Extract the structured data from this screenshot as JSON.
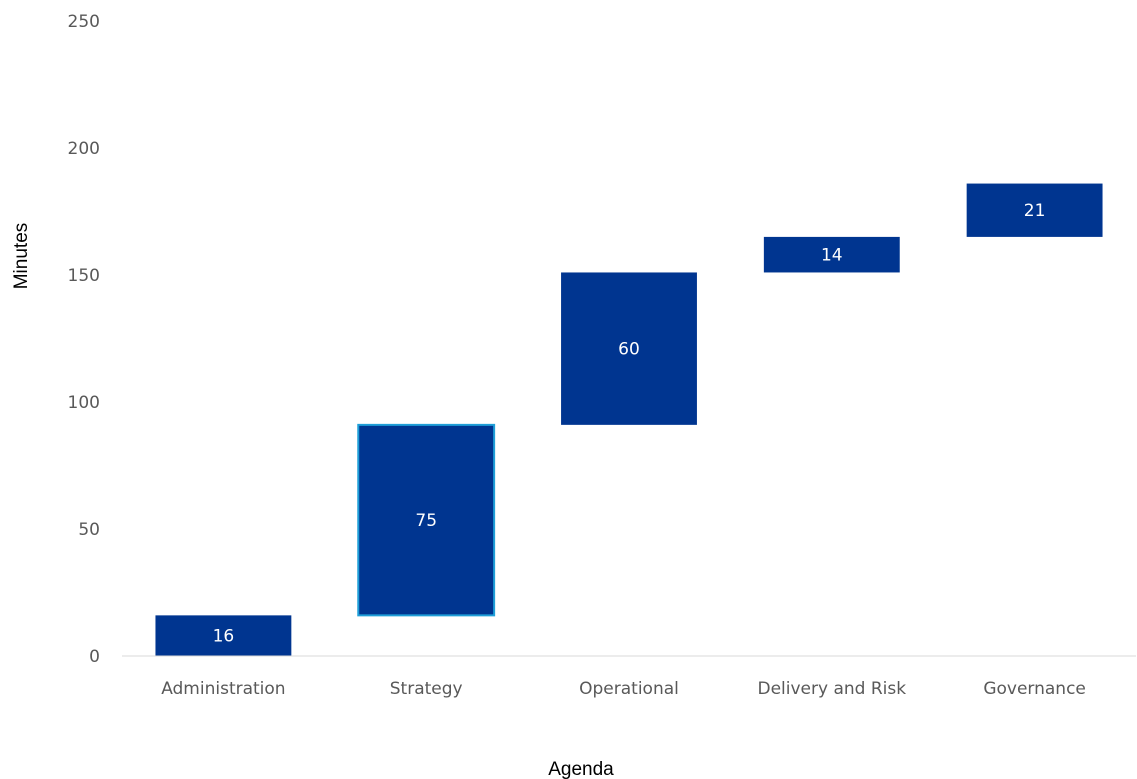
{
  "chart_data": {
    "type": "bar",
    "subtype": "waterfall",
    "categories": [
      "Administration",
      "Strategy",
      "Operational",
      "Delivery and Risk",
      "Governance"
    ],
    "values": [
      16,
      75,
      60,
      14,
      21
    ],
    "xlabel": "Agenda",
    "ylabel": "Minutes",
    "ylim": [
      0,
      250
    ],
    "yticks": [
      "0",
      "50",
      "100",
      "150",
      "200",
      "250"
    ],
    "grid": false,
    "bar_color": "#003590",
    "highlight_border_color": "#1f9fd8",
    "highlight_index": 1,
    "axis_color": "#d9d9d9"
  }
}
